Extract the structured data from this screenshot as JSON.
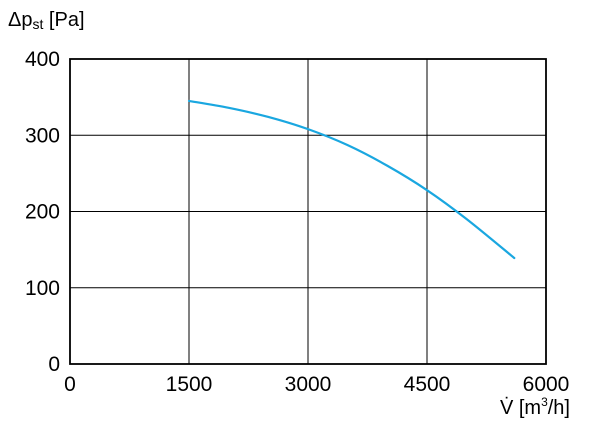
{
  "chart_data": {
    "type": "line",
    "title": "",
    "ylabel": {
      "prefix": "Δp",
      "subscript": "st",
      "unit": " [Pa]"
    },
    "xlabel": {
      "symbol": "V̇",
      "unit_before": " [m",
      "superscript": "3",
      "unit_after": "/h]"
    },
    "xlim": [
      0,
      6000
    ],
    "ylim": [
      0,
      400
    ],
    "x_ticks": [
      0,
      1500,
      3000,
      4500,
      6000
    ],
    "y_ticks": [
      0,
      100,
      200,
      300,
      400
    ],
    "grid": true,
    "colors": {
      "line": "#1aa7e0",
      "axis": "#000000",
      "grid": "#000000"
    },
    "series": [
      {
        "x": [
          1500,
          2000,
          2500,
          3000,
          3500,
          4000,
          4500,
          5000,
          5600
        ],
        "y": [
          345,
          336,
          324,
          308,
          287,
          260,
          228,
          190,
          139
        ]
      }
    ]
  }
}
